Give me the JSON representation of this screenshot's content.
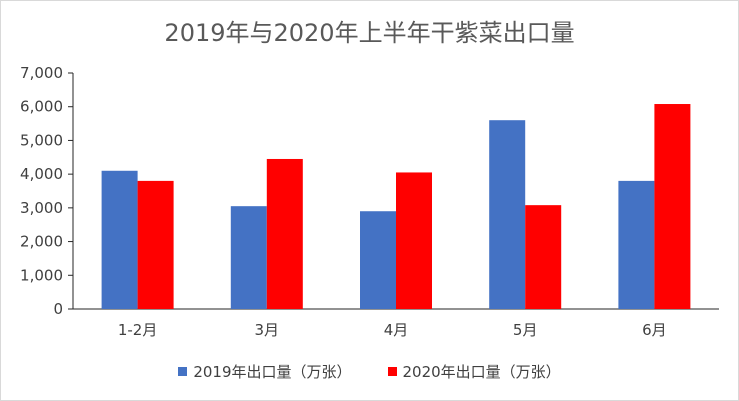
{
  "chart_data": {
    "type": "bar",
    "title": "2019年与2020年上半年干紫菜出口量",
    "categories": [
      "1-2月",
      "3月",
      "4月",
      "5月",
      "6月"
    ],
    "series": [
      {
        "name": "2019年出口量（万张）",
        "color": "#4472c4",
        "values": [
          4100,
          3050,
          2900,
          5600,
          3800
        ]
      },
      {
        "name": "2020年出口量（万张）",
        "color": "#ff0000",
        "values": [
          3800,
          4450,
          4050,
          3080,
          6080
        ]
      }
    ],
    "ylim": [
      0,
      7000
    ],
    "yticks": [
      "0",
      "1,000",
      "2,000",
      "3,000",
      "4,000",
      "5,000",
      "6,000",
      "7,000"
    ],
    "ytick_values": [
      0,
      1000,
      2000,
      3000,
      4000,
      5000,
      6000,
      7000
    ],
    "grid": false,
    "legend_position": "bottom"
  }
}
